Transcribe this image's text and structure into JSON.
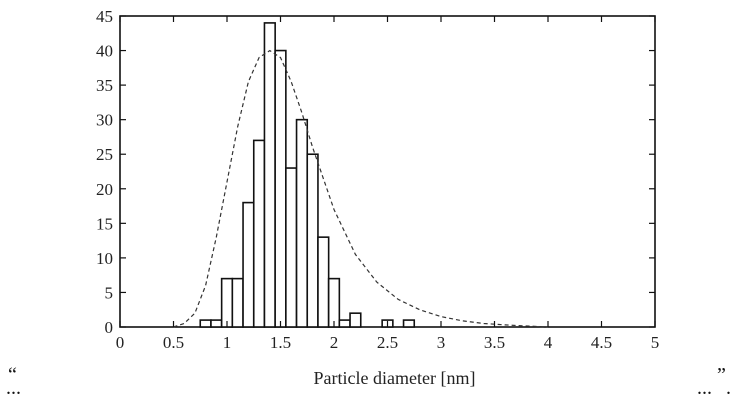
{
  "chart_data": {
    "type": "bar",
    "xlabel": "Particle diameter [nm]",
    "ylabel": "",
    "xlim": [
      0,
      5
    ],
    "ylim": [
      0,
      45
    ],
    "x_ticks": [
      "0",
      "0.5",
      "1",
      "1.5",
      "2",
      "2.5",
      "3",
      "3.5",
      "4",
      "4.5",
      "5"
    ],
    "y_ticks": [
      "0",
      "5",
      "10",
      "15",
      "20",
      "25",
      "30",
      "35",
      "40",
      "45"
    ],
    "bin_width": 0.1,
    "bins": [
      {
        "start": 0.75,
        "value": 1
      },
      {
        "start": 0.85,
        "value": 1
      },
      {
        "start": 0.95,
        "value": 7
      },
      {
        "start": 1.05,
        "value": 7
      },
      {
        "start": 1.15,
        "value": 18
      },
      {
        "start": 1.25,
        "value": 27
      },
      {
        "start": 1.35,
        "value": 44
      },
      {
        "start": 1.45,
        "value": 40
      },
      {
        "start": 1.55,
        "value": 23
      },
      {
        "start": 1.65,
        "value": 30
      },
      {
        "start": 1.75,
        "value": 25
      },
      {
        "start": 1.85,
        "value": 13
      },
      {
        "start": 1.95,
        "value": 7
      },
      {
        "start": 2.05,
        "value": 1
      },
      {
        "start": 2.15,
        "value": 2
      },
      {
        "start": 2.45,
        "value": 1
      },
      {
        "start": 2.65,
        "value": 1
      }
    ],
    "fit_curve": {
      "style": "dashed",
      "x": [
        0.5,
        0.6,
        0.7,
        0.8,
        0.9,
        1.0,
        1.1,
        1.2,
        1.3,
        1.4,
        1.5,
        1.6,
        1.7,
        1.8,
        1.9,
        2.0,
        2.2,
        2.4,
        2.6,
        2.8,
        3.0,
        3.2,
        3.4,
        3.6,
        3.8,
        4.0
      ],
      "y": [
        0,
        0.5,
        2,
        6,
        13,
        21,
        29,
        35.5,
        39,
        40,
        39,
        35.5,
        31,
        26,
        21.5,
        17,
        10.5,
        6.5,
        4,
        2.5,
        1.5,
        0.9,
        0.5,
        0.3,
        0.15,
        0
      ]
    }
  },
  "caption": {
    "open_quote": "“",
    "close_quote": "”",
    "left_ellipsis": "...",
    "right_ellipsis": "...",
    "trailing_dot": "."
  }
}
